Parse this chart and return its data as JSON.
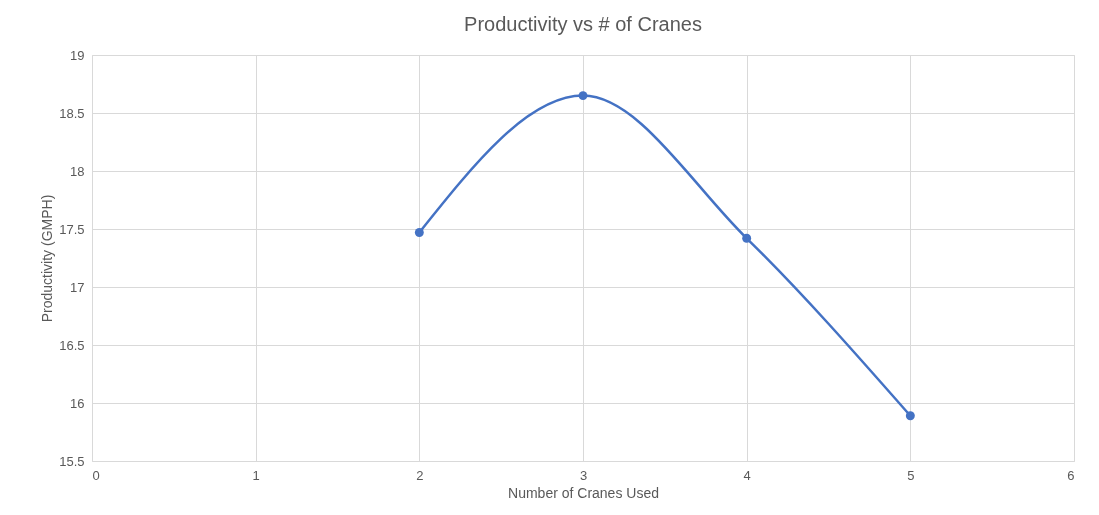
{
  "chart_data": {
    "type": "line",
    "title": "Productivity vs # of Cranes",
    "xlabel": "Number of Cranes Used",
    "ylabel": "Productivity (GMPH)",
    "x": [
      2,
      3,
      4,
      5
    ],
    "series": [
      {
        "color": "#4472c4",
        "values": [
          17.47,
          18.65,
          17.42,
          15.89
        ]
      }
    ],
    "xlim": [
      0,
      6
    ],
    "xticks": [
      0,
      1,
      2,
      3,
      4,
      5,
      6
    ],
    "ylim": [
      15.5,
      19
    ],
    "yticks": [
      15.5,
      16,
      16.5,
      17,
      17.5,
      18,
      18.5,
      19
    ],
    "grid": true,
    "marker": "circle",
    "line_style": "solid"
  }
}
